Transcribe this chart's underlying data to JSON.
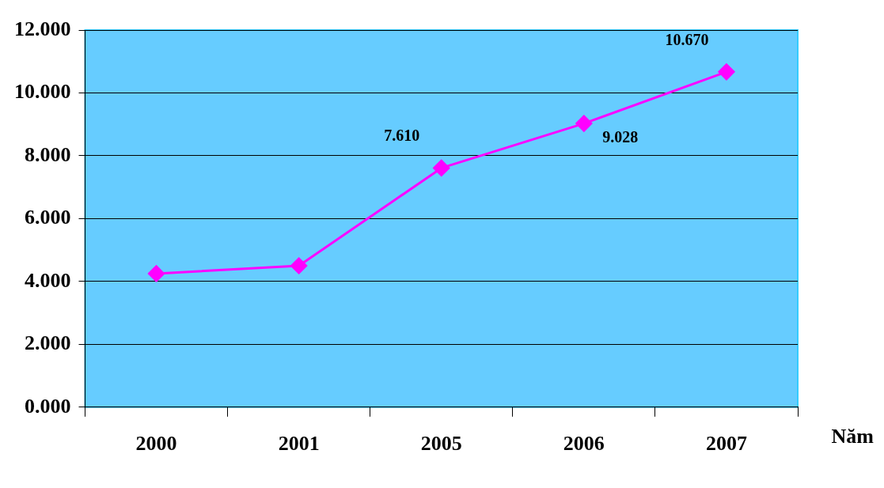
{
  "chart_data": {
    "type": "line",
    "xlabel": "Năm",
    "categories": [
      "2000",
      "2001",
      "2005",
      "2006",
      "2007"
    ],
    "series": [
      {
        "color": "#ff00ff",
        "values": [
          4.25,
          4.5,
          7.61,
          9.028,
          10.67
        ],
        "value_labels": [
          null,
          null,
          "7.610",
          "9.028",
          "10.670"
        ]
      }
    ],
    "ylim": [
      0,
      12
    ],
    "yticks": [
      {
        "value": 0,
        "label": "0.000"
      },
      {
        "value": 2,
        "label": "2.000"
      },
      {
        "value": 4,
        "label": "4.000"
      },
      {
        "value": 6,
        "label": "6.000"
      },
      {
        "value": 8,
        "label": "8.000"
      },
      {
        "value": 10,
        "label": "10.000"
      },
      {
        "value": 12,
        "label": "12.000"
      }
    ],
    "grid": "y",
    "legend": false,
    "marker": "diamond",
    "line_style": "solid"
  }
}
